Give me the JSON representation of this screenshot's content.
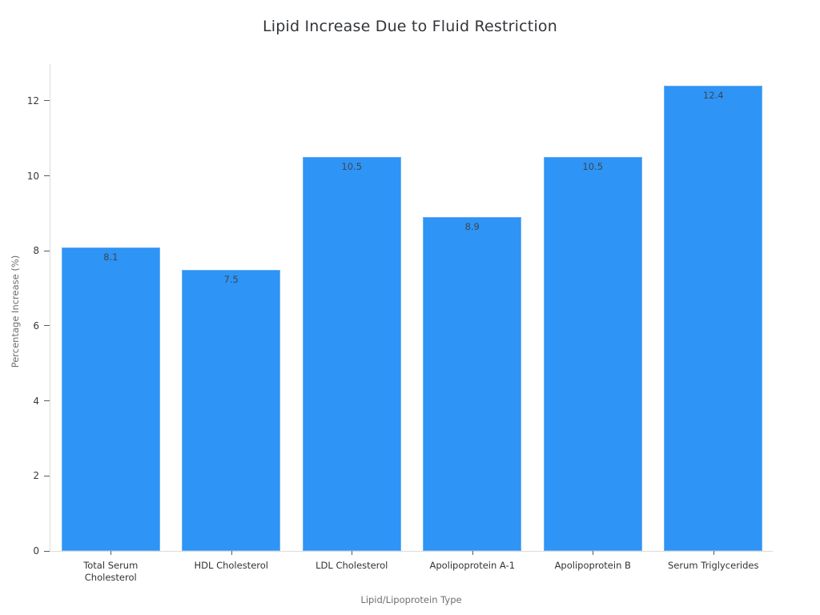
{
  "chart_data": {
    "type": "bar",
    "title": "Lipid Increase Due to Fluid Restriction",
    "xlabel": "Lipid/Lipoprotein Type",
    "ylabel": "Percentage Increase (%)",
    "categories": [
      "Total Serum Cholesterol",
      "HDL Cholesterol",
      "LDL Cholesterol",
      "Apolipoprotein A-1",
      "Apolipoprotein B",
      "Serum Triglycerides"
    ],
    "values": [
      8.1,
      7.5,
      10.5,
      8.9,
      10.5,
      12.4
    ],
    "bar_labels": [
      "8.1",
      "7.5",
      "10.5",
      "8.9",
      "10.5",
      "12.4"
    ],
    "yticks": [
      0,
      2,
      4,
      6,
      8,
      10,
      12
    ],
    "ylim": [
      0,
      13
    ],
    "grid": false,
    "legend": null,
    "bar_color": "#2e94f5",
    "bar_border_color": "#6db0f5",
    "bar_label_color": "#3d4750",
    "axis_line_color": "#dcdcdc",
    "tick_color": "#5a5a5a",
    "tick_label_color": "#333333",
    "axis_title_color": "#6f6f6f",
    "title_color": "#323539"
  }
}
